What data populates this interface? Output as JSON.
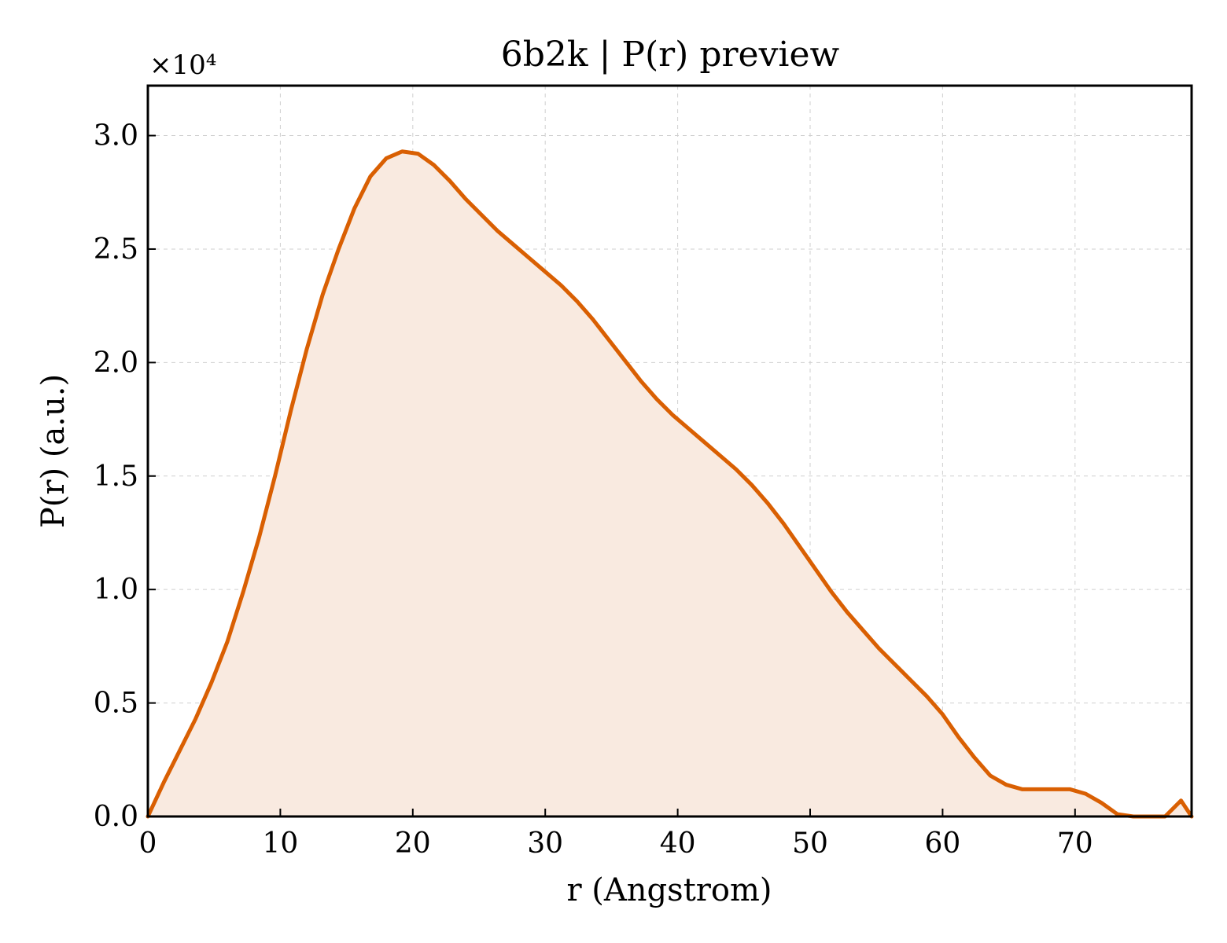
{
  "chart_data": {
    "type": "area",
    "title": "6b2k | P(r) preview",
    "xlabel": "r (Angstrom)",
    "ylabel": "P(r) (a.u.)",
    "y_multiplier_label": "×10⁴",
    "xlim": [
      0,
      78.8
    ],
    "ylim": [
      0,
      32200
    ],
    "x_ticks": [
      0,
      10,
      20,
      30,
      40,
      50,
      60,
      70
    ],
    "x_tick_labels": [
      "0",
      "10",
      "20",
      "30",
      "40",
      "50",
      "60",
      "70"
    ],
    "y_ticks": [
      0,
      5000,
      10000,
      15000,
      20000,
      25000,
      30000
    ],
    "y_tick_labels": [
      "0.0",
      "0.5",
      "1.0",
      "1.5",
      "2.0",
      "2.5",
      "3.0"
    ],
    "grid": true,
    "colors": {
      "line": "#d95f02",
      "fill": "#f9eae0"
    },
    "series": [
      {
        "x": [
          0,
          1.2,
          2.4,
          3.6,
          4.8,
          6.0,
          7.2,
          8.4,
          9.6,
          10.8,
          12.0,
          13.2,
          14.4,
          15.6,
          16.8,
          18.0,
          19.2,
          20.4,
          21.6,
          22.8,
          24.0,
          25.2,
          26.4,
          27.6,
          28.8,
          30.0,
          31.2,
          32.4,
          33.6,
          34.8,
          36.0,
          37.2,
          38.4,
          39.6,
          40.8,
          42.0,
          43.2,
          44.4,
          45.6,
          46.8,
          48.0,
          49.2,
          50.4,
          51.6,
          52.8,
          54.0,
          55.2,
          56.4,
          57.6,
          58.8,
          60.0,
          61.2,
          62.4,
          63.6,
          64.8,
          66.0,
          67.2,
          68.4,
          69.6,
          70.8,
          72.0,
          73.2,
          74.4,
          75.6,
          76.8,
          78.0,
          78.8
        ],
        "y": [
          0,
          1500,
          2900,
          4300,
          5900,
          7700,
          9900,
          12300,
          15000,
          17900,
          20600,
          23000,
          25000,
          26800,
          28200,
          29000,
          29300,
          29200,
          28700,
          28000,
          27200,
          26500,
          25800,
          25200,
          24600,
          24000,
          23400,
          22700,
          21900,
          21000,
          20100,
          19200,
          18400,
          17700,
          17100,
          16500,
          15900,
          15300,
          14600,
          13800,
          12900,
          11900,
          10900,
          9900,
          9000,
          8200,
          7400,
          6700,
          6000,
          5300,
          4500,
          3500,
          2600,
          1800,
          1400,
          1200,
          1200,
          1200,
          1200,
          1000,
          600,
          100,
          0,
          0,
          0,
          700,
          0
        ]
      }
    ]
  }
}
